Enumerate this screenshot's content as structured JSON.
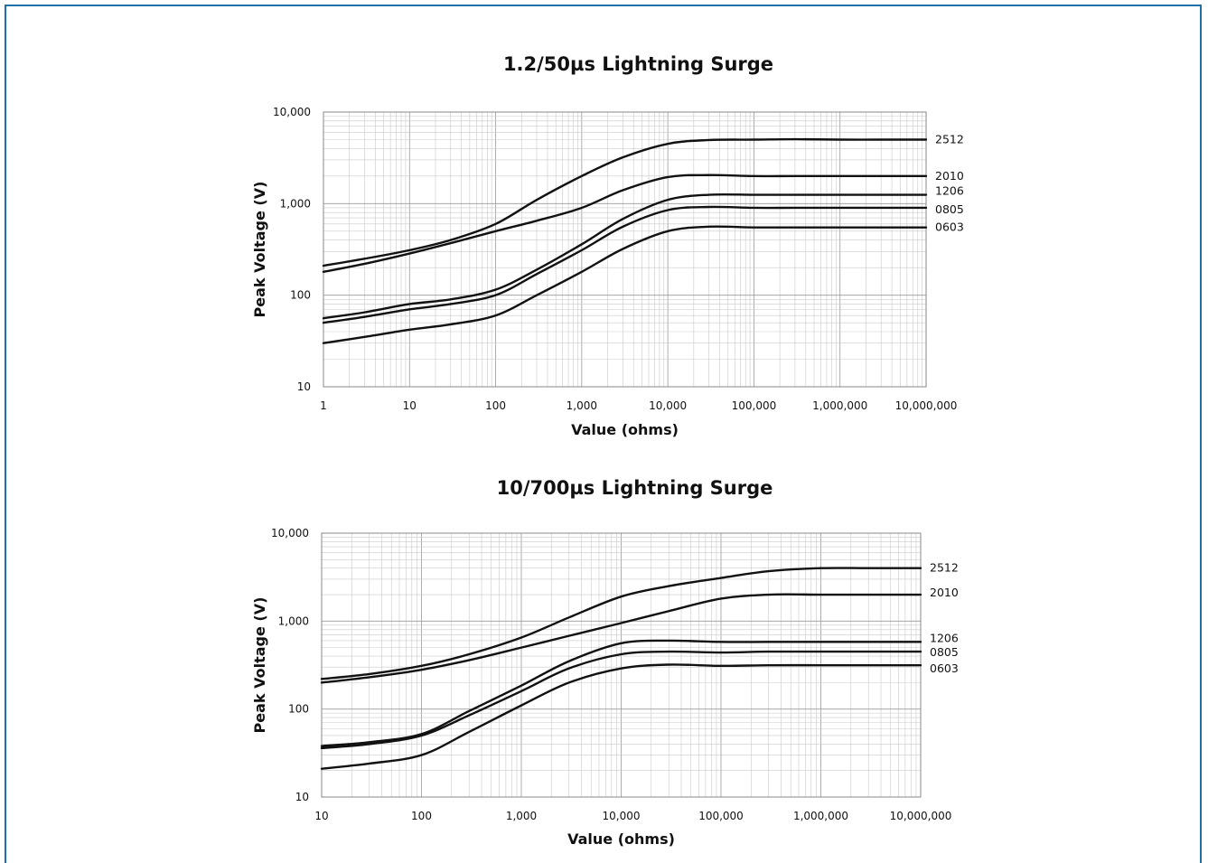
{
  "chart_data": [
    {
      "type": "line",
      "title": "1.2/50µs Lightning Surge",
      "xlabel": "Value (ohms)",
      "ylabel": "Peak Voltage (V)",
      "xscale": "log",
      "yscale": "log",
      "xlim": [
        1,
        10000000
      ],
      "ylim": [
        10,
        10000
      ],
      "grid": true,
      "legend": "right-end labels",
      "x_ticks": [
        "1",
        "10",
        "100",
        "1,000",
        "10,000",
        "100,000",
        "1,000,000",
        "10,000,000"
      ],
      "y_ticks": [
        "10",
        "100",
        "1,000",
        "10,000"
      ],
      "x": [
        1,
        3,
        10,
        30,
        100,
        300,
        1000,
        3000,
        10000,
        30000,
        100000,
        300000,
        1000000,
        3000000,
        10000000
      ],
      "series": [
        {
          "name": "2512",
          "values": [
            210,
            250,
            310,
            400,
            600,
            1100,
            2000,
            3200,
            4500,
            4950,
            5000,
            5050,
            5000,
            5000,
            5000
          ]
        },
        {
          "name": "2010",
          "values": [
            180,
            220,
            285,
            370,
            500,
            650,
            900,
            1400,
            1950,
            2050,
            2000,
            2000,
            2000,
            2000,
            2000
          ]
        },
        {
          "name": "1206",
          "values": [
            56,
            65,
            80,
            90,
            115,
            190,
            360,
            680,
            1100,
            1250,
            1250,
            1250,
            1250,
            1250,
            1250
          ]
        },
        {
          "name": "0805",
          "values": [
            50,
            58,
            70,
            80,
            100,
            170,
            310,
            560,
            850,
            920,
            900,
            900,
            900,
            900,
            900
          ]
        },
        {
          "name": "0603",
          "values": [
            30,
            35,
            42,
            48,
            60,
            100,
            180,
            320,
            500,
            560,
            550,
            550,
            550,
            550,
            550
          ]
        }
      ]
    },
    {
      "type": "line",
      "title": "10/700µs Lightning Surge",
      "xlabel": "Value (ohms)",
      "ylabel": "Peak Voltage (V)",
      "xscale": "log",
      "yscale": "log",
      "xlim": [
        10,
        10000000
      ],
      "ylim": [
        10,
        10000
      ],
      "grid": true,
      "legend": "right-end labels",
      "x_ticks": [
        "10",
        "100",
        "1,000",
        "10,000",
        "100,000",
        "1,000,000",
        "10,000,000"
      ],
      "y_ticks": [
        "10",
        "100",
        "1,000",
        "10,000"
      ],
      "x": [
        10,
        30,
        100,
        300,
        1000,
        3000,
        10000,
        30000,
        100000,
        300000,
        1000000,
        3000000,
        10000000
      ],
      "series": [
        {
          "name": "2512",
          "values": [
            220,
            250,
            310,
            420,
            650,
            1100,
            1900,
            2500,
            3100,
            3700,
            4000,
            4000,
            4000
          ]
        },
        {
          "name": "2010",
          "values": [
            200,
            230,
            280,
            360,
            500,
            680,
            950,
            1300,
            1800,
            2000,
            2000,
            2000,
            2000
          ]
        },
        {
          "name": "1206",
          "values": [
            38,
            42,
            52,
            95,
            185,
            350,
            560,
            600,
            580,
            580,
            580,
            580,
            580
          ]
        },
        {
          "name": "0805",
          "values": [
            36,
            40,
            50,
            85,
            160,
            290,
            420,
            450,
            440,
            450,
            450,
            450,
            450
          ]
        },
        {
          "name": "0603",
          "values": [
            21,
            24,
            30,
            55,
            110,
            200,
            290,
            320,
            310,
            315,
            315,
            315,
            315
          ]
        }
      ]
    }
  ],
  "colors": {
    "frame": "#1f6fa8",
    "line": "#111111",
    "grid_major": "#9a9a9a",
    "grid_minor": "#c9c9c9"
  }
}
